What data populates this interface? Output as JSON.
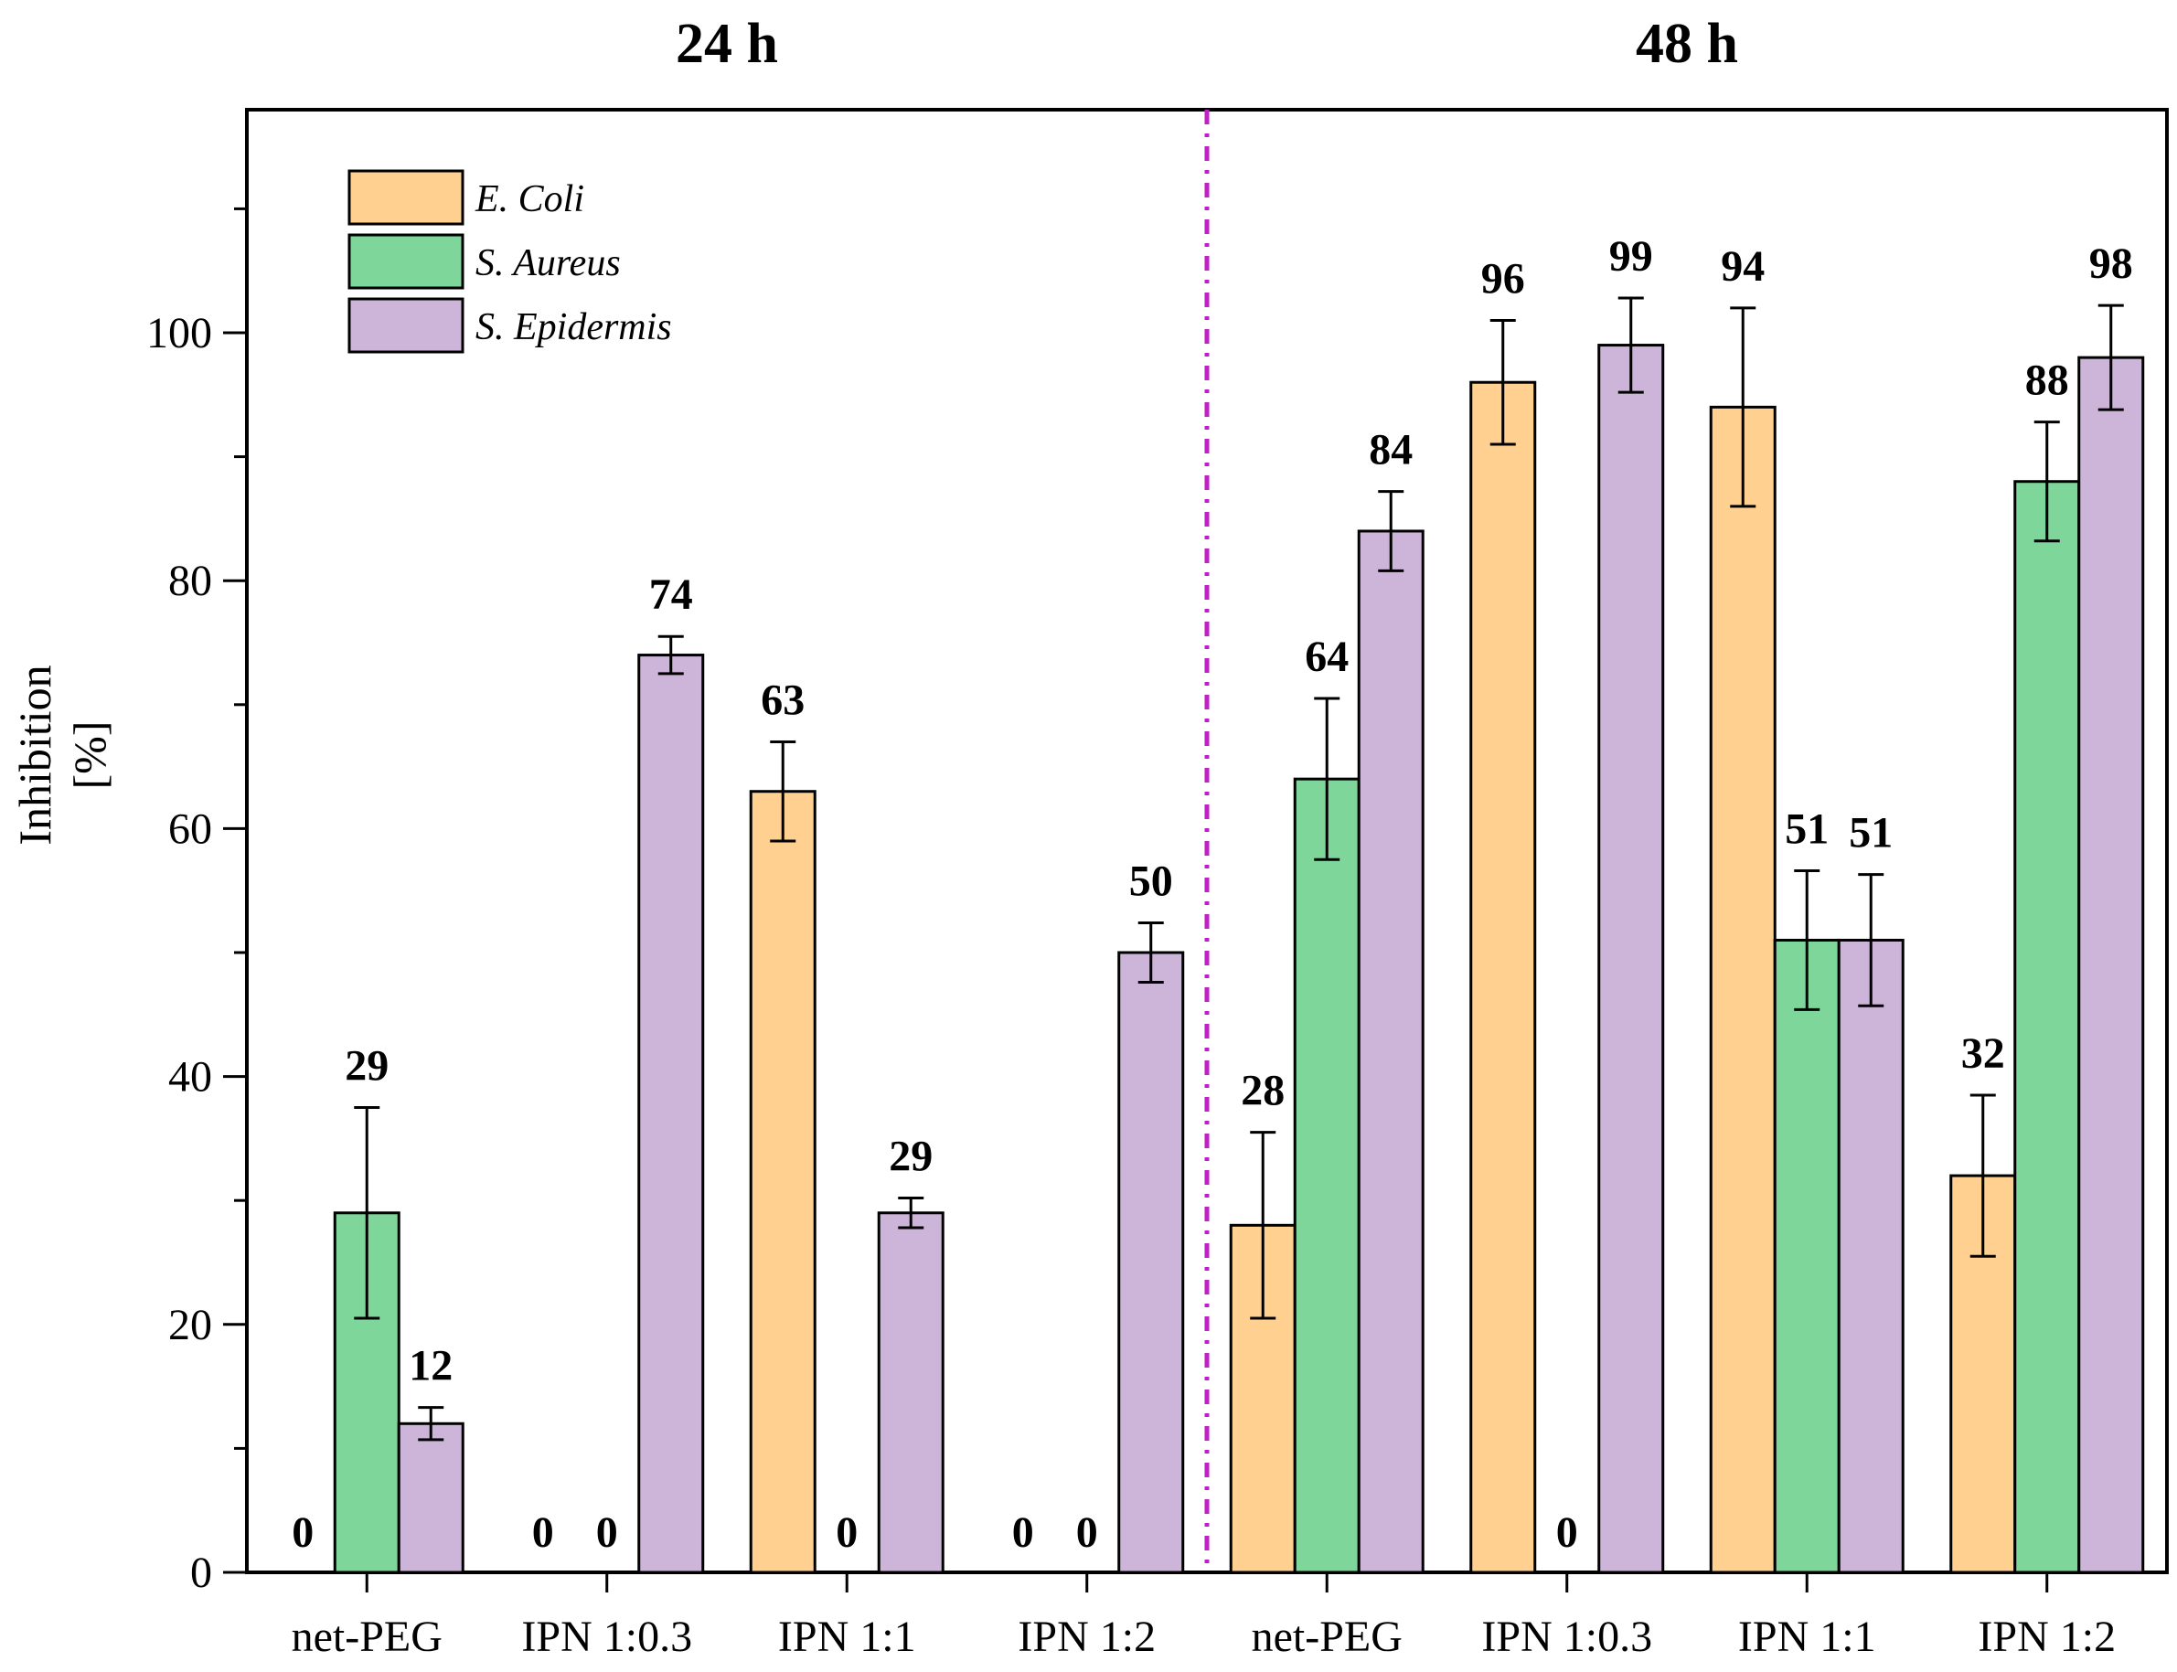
{
  "chart_data": {
    "type": "bar",
    "panels": [
      {
        "title": "24 h",
        "categories": [
          "net-PEG",
          "IPN 1:0.3",
          "IPN 1:1",
          "IPN 1:2"
        ],
        "series": [
          {
            "name": "E. Coli",
            "values": [
              0,
              0,
              63,
              0
            ],
            "errors": [
              0,
              0,
              4,
              0
            ]
          },
          {
            "name": "S. Aureus",
            "values": [
              29,
              0,
              0,
              0
            ],
            "errors": [
              8.5,
              0,
              0,
              0
            ]
          },
          {
            "name": "S. Epidermis",
            "values": [
              12,
              74,
              29,
              50
            ],
            "errors": [
              1.3,
              1.5,
              1.2,
              2.4
            ]
          }
        ]
      },
      {
        "title": "48 h",
        "categories": [
          "net-PEG",
          "IPN 1:0.3",
          "IPN 1:1",
          "IPN 1:2"
        ],
        "series": [
          {
            "name": "E. Coli",
            "values": [
              28,
              96,
              94,
              32
            ],
            "errors": [
              7.5,
              5,
              8,
              6.5
            ]
          },
          {
            "name": "S. Aureus",
            "values": [
              64,
              0,
              51,
              88
            ],
            "errors": [
              6.5,
              0,
              5.6,
              4.8
            ]
          },
          {
            "name": "S. Epidermis",
            "values": [
              84,
              99,
              51,
              98
            ],
            "errors": [
              3.2,
              3.8,
              5.3,
              4.2
            ]
          }
        ]
      }
    ],
    "ylabel_line1": "Inhibition",
    "ylabel_line2": "[%]",
    "ylim": [
      0,
      118
    ],
    "yticks": [
      0,
      20,
      40,
      60,
      80,
      100
    ],
    "legend": [
      "E. Coli",
      "S. Aureus",
      "S. Epidermis"
    ],
    "legend_position": "top-left"
  },
  "colors": {
    "E. Coli": "#FFD08F",
    "S. Aureus": "#7ED69A",
    "S. Epidermis": "#CDB5D9",
    "divider": "#C020C8"
  }
}
